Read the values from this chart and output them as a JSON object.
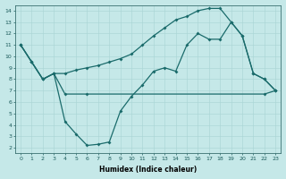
{
  "xlabel": "Humidex (Indice chaleur)",
  "bg_color": "#c5e8e8",
  "line_color": "#1a6b6b",
  "grid_color": "#a8d4d4",
  "xlim": [
    -0.5,
    23.5
  ],
  "ylim": [
    1.5,
    14.5
  ],
  "xticks": [
    0,
    1,
    2,
    3,
    4,
    5,
    6,
    7,
    8,
    9,
    10,
    11,
    12,
    13,
    14,
    15,
    16,
    17,
    18,
    19,
    20,
    21,
    22,
    23
  ],
  "yticks": [
    2,
    3,
    4,
    5,
    6,
    7,
    8,
    9,
    10,
    11,
    12,
    13,
    14
  ],
  "line1_x": [
    0,
    1,
    2,
    3,
    4,
    5,
    6,
    7,
    8,
    9,
    10,
    11,
    12,
    13,
    14,
    15,
    16,
    17,
    18,
    19,
    20,
    21,
    22,
    23
  ],
  "line1_y": [
    11,
    9.5,
    8,
    8.5,
    4.3,
    3.2,
    2.2,
    2.3,
    2.5,
    5.2,
    6.5,
    7.5,
    8.7,
    9.0,
    8.7,
    11,
    12,
    11.5,
    11.5,
    13,
    11.8,
    8.5,
    8,
    7
  ],
  "line2_x": [
    0,
    1,
    2,
    3,
    4,
    6,
    22,
    23
  ],
  "line2_y": [
    11,
    9.5,
    8,
    8.5,
    6.7,
    6.7,
    6.7,
    7.0
  ],
  "line3_x": [
    0,
    1,
    2,
    3,
    4,
    5,
    6,
    7,
    8,
    9,
    10,
    11,
    12,
    13,
    14,
    15,
    16,
    17,
    18,
    19,
    20,
    21,
    22,
    23
  ],
  "line3_y": [
    11,
    9.5,
    8.0,
    8.5,
    8.5,
    8.8,
    9.0,
    9.2,
    9.5,
    9.8,
    10.2,
    11.0,
    11.8,
    12.5,
    13.2,
    13.5,
    14.0,
    14.2,
    14.2,
    13.0,
    11.8,
    8.5,
    8.0,
    7.0
  ]
}
